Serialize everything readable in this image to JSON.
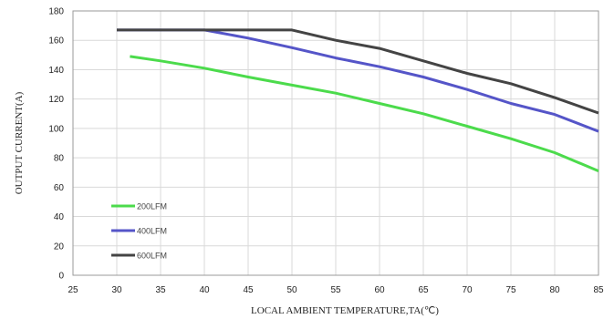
{
  "chart_data": {
    "type": "line",
    "title": "",
    "xlabel": "LOCAL  AMBIENT  TEMPERATURE,TA(℃)",
    "ylabel": "OUTPUT CURRENT(A)",
    "xlim": [
      25,
      85
    ],
    "ylim": [
      0,
      180
    ],
    "xticks": [
      25,
      30,
      35,
      40,
      45,
      50,
      55,
      60,
      65,
      70,
      75,
      80,
      85
    ],
    "yticks": [
      0,
      20,
      40,
      60,
      80,
      100,
      120,
      140,
      160,
      180
    ],
    "grid": true,
    "legend_position": "lower-left",
    "series": [
      {
        "name": "200LFM",
        "color": "#4cdb4c",
        "x": [
          31.5,
          35,
          40,
          45,
          50,
          55,
          60,
          65,
          70,
          75,
          80,
          85
        ],
        "y": [
          149,
          146,
          141,
          135,
          129.5,
          124,
          117,
          110,
          101.5,
          93,
          83.5,
          71
        ]
      },
      {
        "name": "400LFM",
        "color": "#5555c8",
        "x": [
          30,
          40,
          45,
          50,
          55,
          60,
          65,
          70,
          75,
          80,
          85
        ],
        "y": [
          167,
          167,
          161.5,
          155,
          148,
          142,
          135,
          126.5,
          117,
          109.5,
          98
        ]
      },
      {
        "name": "600LFM",
        "color": "#444444",
        "x": [
          30,
          50,
          55,
          60,
          65,
          70,
          75,
          80,
          85
        ],
        "y": [
          167,
          167,
          160,
          154.5,
          146,
          137.5,
          130.5,
          121,
          110.5
        ]
      }
    ]
  }
}
